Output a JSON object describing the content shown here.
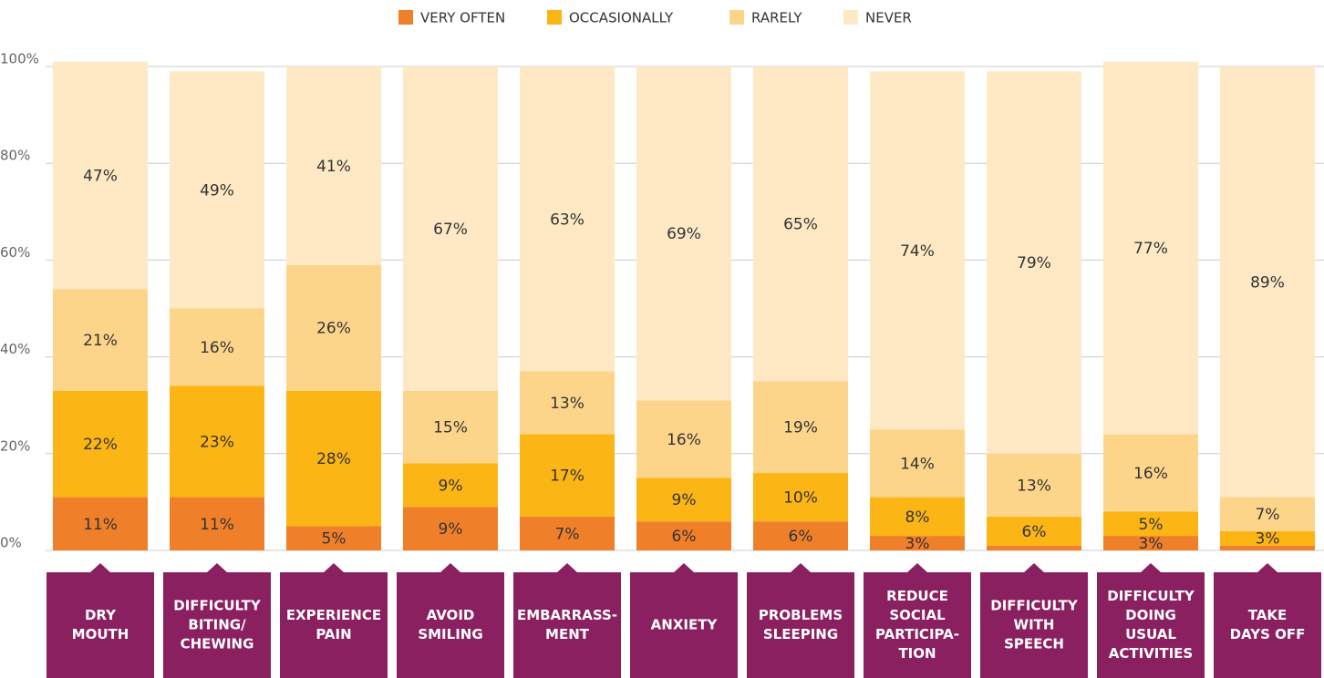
{
  "chart_data": {
    "type": "stacked_bar",
    "categories": [
      [
        "DRY",
        "MOUTH"
      ],
      [
        "DIFFICULTY",
        "BITING/",
        "CHEWING"
      ],
      [
        "EXPERIENCE",
        "PAIN"
      ],
      [
        "AVOID",
        "SMILING"
      ],
      [
        "EMBARRASS-",
        "MENT"
      ],
      [
        "ANXIETY"
      ],
      [
        "PROBLEMS",
        "SLEEPING"
      ],
      [
        "REDUCE",
        "SOCIAL",
        "PARTICIPA-",
        "TION"
      ],
      [
        "DIFFICULTY",
        "WITH",
        "SPEECH"
      ],
      [
        "DIFFICULTY",
        "DOING",
        "USUAL",
        "ACTIVITIES"
      ],
      [
        "TAKE",
        "DAYS OFF"
      ]
    ],
    "series": [
      {
        "name": "VERY OFTEN",
        "color": "#f07f2a",
        "values": [
          11,
          11,
          5,
          9,
          7,
          6,
          6,
          3,
          1,
          3,
          1
        ],
        "value_labels": [
          "11%",
          "11%",
          "5%",
          "9%",
          "7%",
          "6%",
          "6%",
          "3%",
          null,
          "3%",
          null
        ]
      },
      {
        "name": "OCCASIONALLY",
        "color": "#fbb515",
        "values": [
          22,
          23,
          28,
          9,
          17,
          9,
          10,
          8,
          6,
          5,
          3
        ],
        "value_labels": [
          "22%",
          "23%",
          "28%",
          "9%",
          "17%",
          "9%",
          "10%",
          "8%",
          "6%",
          "5%",
          "3%"
        ]
      },
      {
        "name": "RARELY",
        "color": "#fdd58a",
        "values": [
          21,
          16,
          26,
          15,
          13,
          16,
          19,
          14,
          13,
          16,
          7
        ],
        "value_labels": [
          "21%",
          "16%",
          "26%",
          "15%",
          "13%",
          "16%",
          "19%",
          "14%",
          "13%",
          "16%",
          "7%"
        ]
      },
      {
        "name": "NEVER",
        "color": "#fee9c4",
        "values": [
          47,
          49,
          41,
          67,
          63,
          69,
          65,
          74,
          79,
          77,
          89
        ],
        "value_labels": [
          "47%",
          "49%",
          "41%",
          "67%",
          "63%",
          "69%",
          "65%",
          "74%",
          "79%",
          "77%",
          "89%"
        ]
      }
    ],
    "ylim": [
      0,
      100
    ],
    "yticks": [
      {
        "value": 0,
        "label": "0%"
      },
      {
        "value": 20,
        "label": "20%"
      },
      {
        "value": 40,
        "label": "40%"
      },
      {
        "value": 60,
        "label": "60%"
      },
      {
        "value": 80,
        "label": "80%"
      },
      {
        "value": 100,
        "label": "100%"
      }
    ],
    "grid": true,
    "legend": "top",
    "label_color": "#8a2060"
  }
}
